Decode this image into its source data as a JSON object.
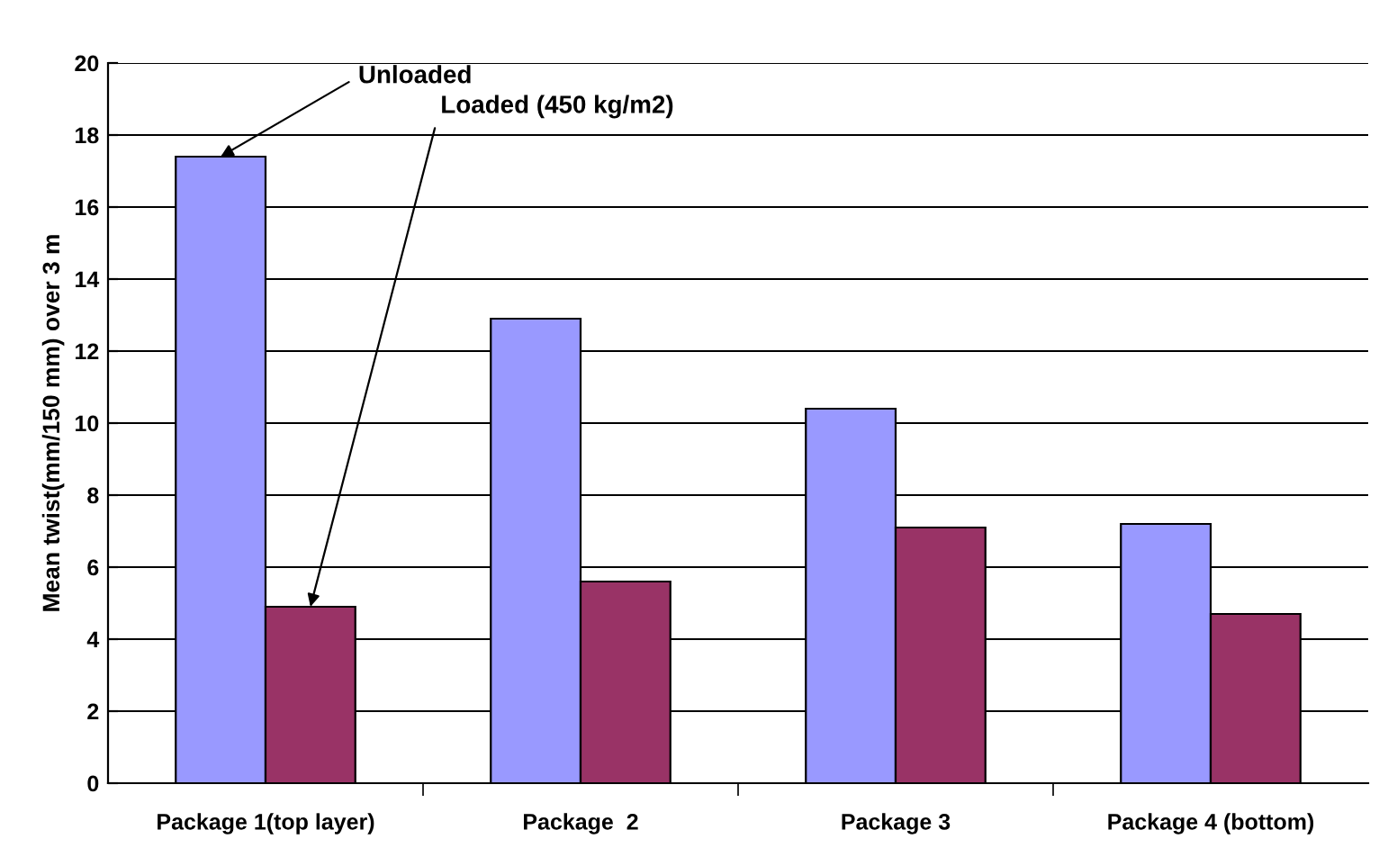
{
  "chart_data": {
    "type": "bar",
    "ylabel": "Mean twist(mm/150 mm) over 3 m",
    "categories": [
      "Package 1(top layer)",
      "Package  2",
      "Package 3",
      "Package 4 (bottom)"
    ],
    "series": [
      {
        "name": "Unloaded",
        "color": "#9999ff",
        "values": [
          17.4,
          12.9,
          10.4,
          7.2
        ]
      },
      {
        "name": "Loaded (450 kg/m2)",
        "color": "#993366",
        "values": [
          4.9,
          5.6,
          7.1,
          4.7
        ]
      }
    ],
    "ylim": [
      0,
      20
    ],
    "yticks": [
      0,
      2,
      4,
      6,
      8,
      10,
      12,
      14,
      16,
      18,
      20
    ],
    "grid": "y",
    "legend": false
  }
}
